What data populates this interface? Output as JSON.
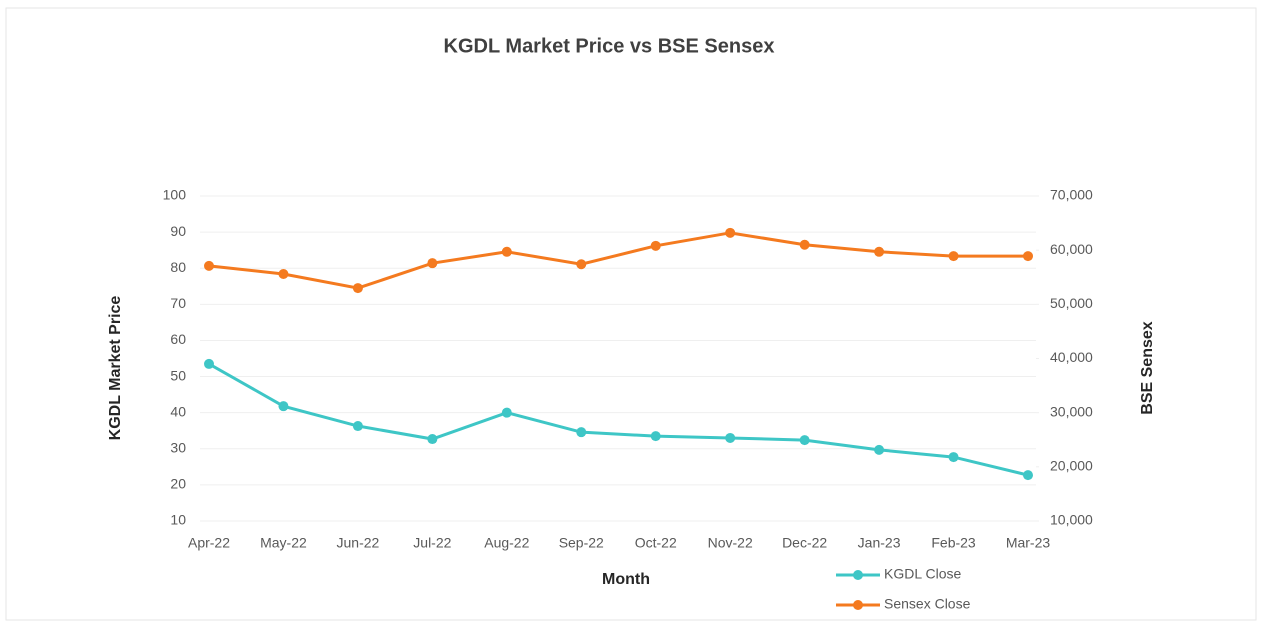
{
  "chart_data": {
    "type": "line",
    "title": "KGDL Market Price vs BSE Sensex",
    "x_label": "Month",
    "y_label": "KGDL Market Price",
    "y2_label": "BSE Sensex",
    "categories": [
      "Apr-22",
      "May-22",
      "Jun-22",
      "Jul-22",
      "Aug-22",
      "Sep-22",
      "Oct-22",
      "Nov-22",
      "Dec-22",
      "Jan-23",
      "Feb-23",
      "Mar-23"
    ],
    "series": [
      {
        "name": "KGDL Close",
        "color": "#3ec6c6",
        "values": [
          53.5,
          41.8,
          36.3,
          32.7,
          40,
          34.6,
          33.5,
          33,
          32.4,
          29.7,
          27.7,
          22.7
        ]
      },
      {
        "name": "Sensex Close",
        "color": "#f47a1f",
        "axis": "y2",
        "values": [
          57100,
          55600,
          53000,
          57600,
          59700,
          57400,
          60800,
          63200,
          61000,
          59700,
          58900,
          58900
        ]
      }
    ],
    "ylim": [
      10,
      100
    ],
    "yticks": [
      10,
      20,
      30,
      40,
      50,
      60,
      70,
      80,
      90,
      100
    ],
    "y2lim": [
      10000,
      70000
    ],
    "y2ticks": [
      {
        "value": 10000,
        "label": "10,000"
      },
      {
        "value": 20000,
        "label": "20,000"
      },
      {
        "value": 30000,
        "label": "30,000"
      },
      {
        "value": 40000,
        "label": "40,000"
      },
      {
        "value": 50000,
        "label": "50,000"
      },
      {
        "value": 60000,
        "label": "60,000"
      },
      {
        "value": 70000,
        "label": "70,000"
      }
    ],
    "grid": true,
    "legend": "bottom-right"
  }
}
